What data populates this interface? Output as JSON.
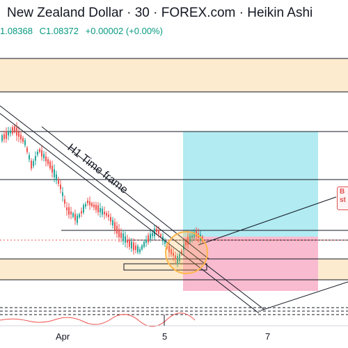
{
  "header": {
    "title": "New Zealand Dollar · 30 · FOREX.com · Heikin Ashi",
    "ohlc_visible": "1.08368",
    "close": "C1.08372",
    "change": "+0.00002 (+0.00%)"
  },
  "annotation": {
    "trend_label": "H1 Time frame",
    "note_fragment": "B\nst"
  },
  "x_axis": {
    "labels": [
      "Apr",
      "5",
      "7"
    ]
  },
  "colors": {
    "up": "#26a69a",
    "down": "#ef5350",
    "target_zone": "#b2ebf2",
    "stop_zone": "#f8bbd0",
    "supply_demand_zone": "#fdebd0",
    "highlight_circle": "#ffb74d"
  }
}
